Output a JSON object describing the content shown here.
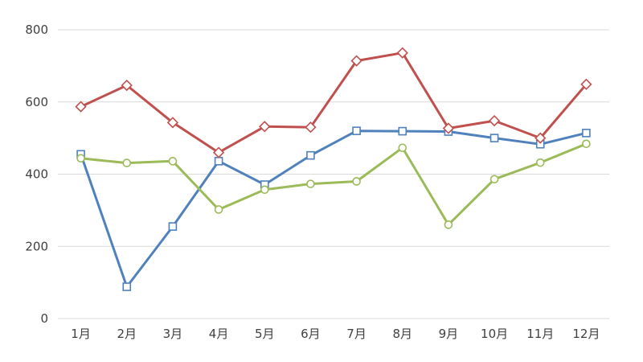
{
  "chart_data": {
    "type": "line",
    "title": "",
    "xlabel": "",
    "ylabel": "",
    "categories": [
      "1月",
      "2月",
      "3月",
      "4月",
      "5月",
      "6月",
      "7月",
      "8月",
      "9月",
      "10月",
      "11月",
      "12月"
    ],
    "ylim": [
      0,
      800
    ],
    "yticks": [
      0,
      200,
      400,
      600,
      800
    ],
    "grid": true,
    "legend": "none",
    "series": [
      {
        "color": "#4f81bd",
        "marker": "square",
        "values": [
          455,
          88,
          255,
          436,
          371,
          452,
          520,
          519,
          518,
          500,
          483,
          514
        ]
      },
      {
        "color": "#c0504d",
        "marker": "diamond",
        "values": [
          587,
          646,
          543,
          460,
          532,
          530,
          714,
          736,
          527,
          548,
          500,
          649
        ]
      },
      {
        "color": "#9bbb59",
        "marker": "circle",
        "values": [
          444,
          431,
          436,
          302,
          357,
          373,
          380,
          473,
          260,
          386,
          432,
          484
        ]
      }
    ]
  }
}
